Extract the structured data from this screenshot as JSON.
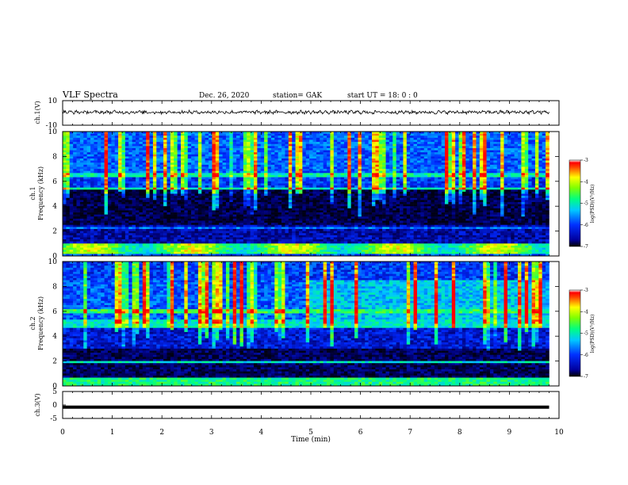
{
  "header": {
    "title": "VLF  Spectra",
    "date": "Dec. 26, 2020",
    "station": "station= GAK",
    "start": "start  UT =   18: 0   : 0"
  },
  "colors": {
    "background_low": "#000030",
    "mid_blue": "#0038ff",
    "cyan": "#00e0e0",
    "green": "#40ff40",
    "yellow": "#ffff00",
    "red": "#ff0000"
  },
  "chart_data": [
    {
      "type": "line",
      "panel": "ch1-waveform",
      "ylabel": "ch.1(V)",
      "ylim": [
        -10,
        10
      ],
      "yticks": [
        "10",
        "-10"
      ],
      "xlim": [
        0,
        10
      ],
      "series": [
        {
          "values_approx": "noisy trace near 0 V (slightly above 0) from 0 to 9.8 min"
        }
      ]
    },
    {
      "type": "heatmap",
      "panel": "ch1-spectrogram",
      "ylabel": "ch.1\nFrequency  (kHz)",
      "ylim": [
        0,
        10
      ],
      "yticks": [
        "0",
        "2",
        "4",
        "6",
        "8",
        "10"
      ],
      "xlim": [
        0,
        10
      ],
      "data_end_min": 9.8,
      "colorbar": {
        "label": "log(PSD)(V²/Hz)",
        "range": [
          -7,
          -3
        ],
        "ticks": [
          "-3",
          "-4",
          "-5",
          "-6",
          "-7"
        ]
      },
      "features": {
        "strong_band_kHz": [
          0.2,
          1.0
        ],
        "cutoff_kHz": 5.4,
        "lines_kHz": [
          2.3,
          6.5
        ],
        "quiet_band_kHz": [
          1.0,
          5.3
        ]
      }
    },
    {
      "type": "heatmap",
      "panel": "ch2-spectrogram",
      "ylabel": "ch.2\nFrequency  (kHz)",
      "ylim": [
        0,
        10
      ],
      "yticks": [
        "0",
        "2",
        "4",
        "6",
        "8",
        "10"
      ],
      "xlim": [
        0,
        10
      ],
      "data_end_min": 9.8,
      "colorbar": {
        "label": "log(PSD)(V²/Hz)",
        "range": [
          -7,
          -3
        ],
        "ticks": [
          "-3",
          "-4",
          "-5",
          "-6",
          "-7"
        ]
      },
      "features": {
        "strong_band_kHz": [
          0.0,
          0.6
        ],
        "lines_kHz": [
          1.9,
          4.8,
          5.2,
          6.0
        ],
        "cutoff_kHz": 5.3
      }
    },
    {
      "type": "line",
      "panel": "ch3-waveform",
      "ylabel": "ch.3(V)",
      "ylim": [
        -5,
        5
      ],
      "yticks": [
        "5",
        "0",
        "-5"
      ],
      "xlim": [
        0,
        10
      ],
      "series": [
        {
          "values_approx": "flat at about -0.8 V from 0 to 9.8 min"
        }
      ]
    }
  ],
  "xaxis": {
    "label": "Time  (min)",
    "ticks": [
      "0",
      "1",
      "2",
      "3",
      "4",
      "5",
      "6",
      "7",
      "8",
      "9",
      "10"
    ]
  }
}
